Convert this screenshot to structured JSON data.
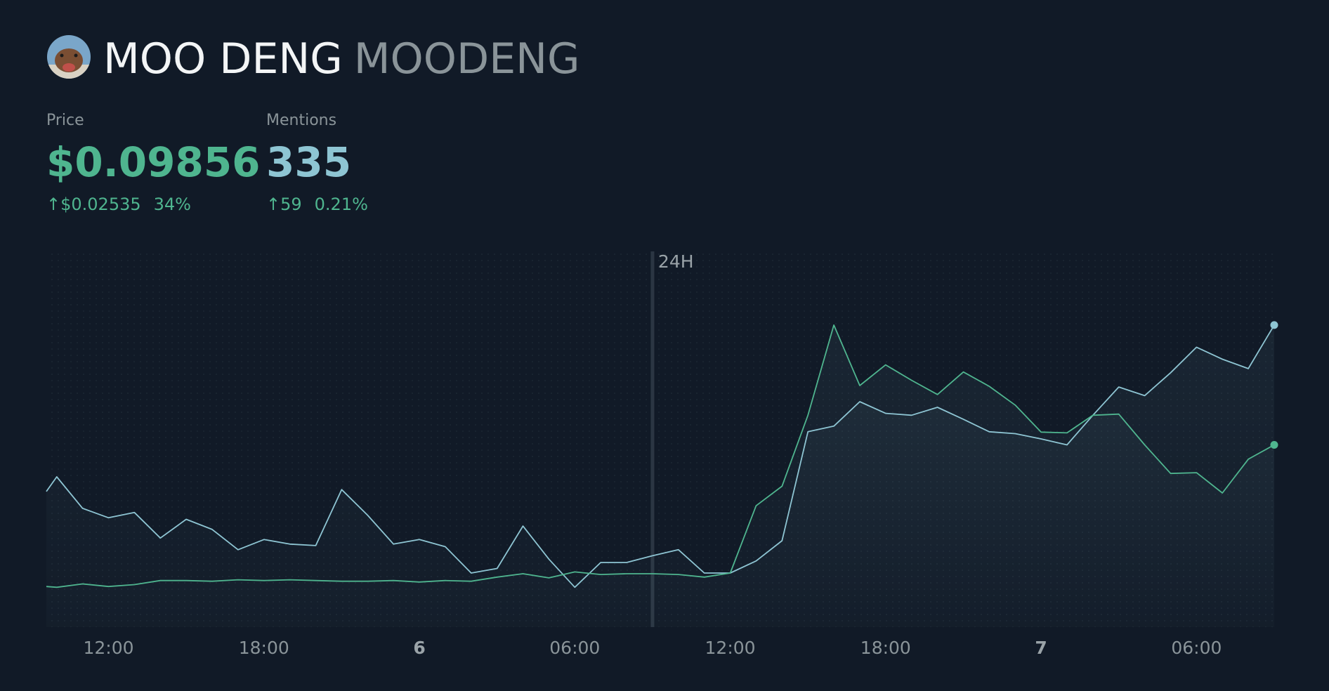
{
  "header": {
    "title": "MOO DENG",
    "ticker": "MOODENG"
  },
  "stats": [
    {
      "label": "Price",
      "value": "$0.09856",
      "change": "↑$0.02535",
      "change_pct": "34%"
    },
    {
      "label": "Mentions",
      "value": "335",
      "change": "↑59",
      "change_pct": "0.21%"
    }
  ],
  "chart_data": {
    "type": "line",
    "x": [
      9.6,
      10,
      11,
      12,
      13,
      14,
      15,
      16,
      17,
      18,
      19,
      20,
      21,
      22,
      23,
      24,
      25,
      26,
      27,
      28,
      29,
      30,
      31,
      32,
      33,
      34,
      35,
      36,
      37,
      38,
      39,
      40,
      41,
      42,
      43,
      44,
      45,
      46,
      47,
      48,
      49,
      50,
      51,
      52,
      53,
      54,
      55,
      56,
      57
    ],
    "series": [
      {
        "name": "Mentions",
        "color": "#8ec5d3",
        "values": [
          36.1,
          40.0,
          31.6,
          29.1,
          30.5,
          23.7,
          28.7,
          26.0,
          20.6,
          23.3,
          22.1,
          21.7,
          36.6,
          29.8,
          22.1,
          23.3,
          21.4,
          14.4,
          15.6,
          26.9,
          18.1,
          10.6,
          17.2,
          17.2,
          19.0,
          20.6,
          14.4,
          14.4,
          17.6,
          23.0,
          52.0,
          53.5,
          60.0,
          56.9,
          56.4,
          58.5,
          55.3,
          52.0,
          51.5,
          50.1,
          48.5,
          56.4,
          63.9,
          61.6,
          67.7,
          74.5,
          71.3,
          68.8,
          80.4
        ]
      },
      {
        "name": "Price",
        "color": "#4fb58f",
        "values": [
          10.8,
          10.6,
          11.5,
          10.8,
          11.3,
          12.4,
          12.4,
          12.2,
          12.6,
          12.4,
          12.6,
          12.4,
          12.2,
          12.2,
          12.4,
          12.0,
          12.4,
          12.2,
          13.3,
          14.2,
          13.1,
          14.7,
          14.0,
          14.2,
          14.2,
          14.0,
          13.3,
          14.4,
          32.3,
          37.5,
          56.4,
          80.4,
          64.3,
          69.8,
          65.7,
          61.9,
          67.9,
          64.1,
          59.1,
          51.9,
          51.7,
          56.4,
          56.7,
          48.5,
          40.9,
          41.1,
          35.7,
          44.7,
          48.5
        ]
      }
    ],
    "xlim": [
      9.6,
      57
    ],
    "xticks": [
      {
        "value": 12,
        "label": "12:00"
      },
      {
        "value": 18,
        "label": "18:00"
      },
      {
        "value": 24,
        "label": "6"
      },
      {
        "value": 30,
        "label": "06:00"
      },
      {
        "value": 36,
        "label": "12:00"
      },
      {
        "value": 42,
        "label": "18:00"
      },
      {
        "value": 48,
        "label": "7"
      },
      {
        "value": 54,
        "label": "06:00"
      }
    ],
    "ylim": [
      0,
      100
    ],
    "marker": {
      "x": 33,
      "label": "24H"
    }
  }
}
